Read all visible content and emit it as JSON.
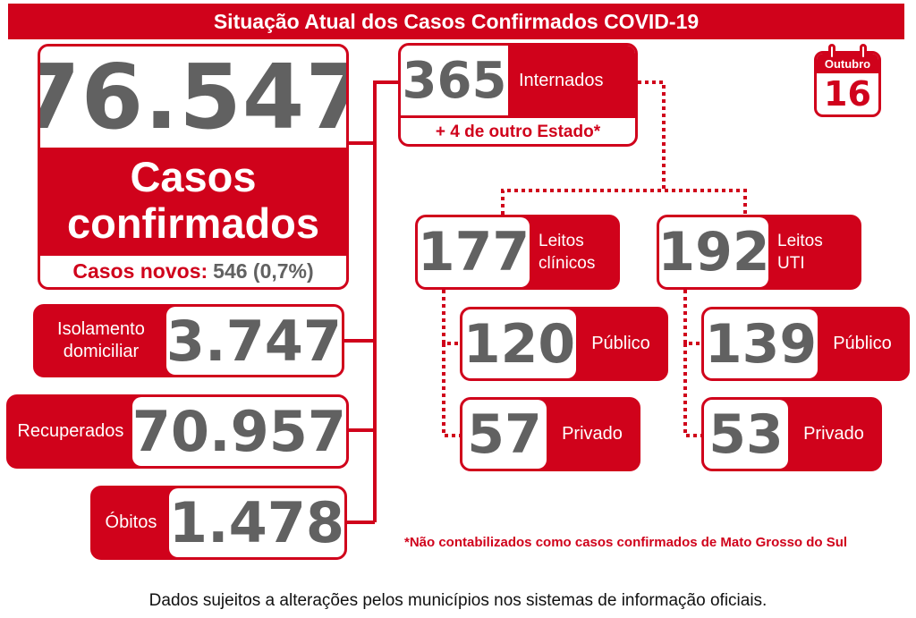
{
  "header": {
    "title": "Situação Atual dos Casos Confirmados COVID-19"
  },
  "calendar": {
    "month": "Outubro",
    "day": "16"
  },
  "confirmed": {
    "value": "76.547",
    "label_line1": "Casos",
    "label_line2": "confirmados",
    "new_label": "Casos novos:",
    "new_value": "546 (0,7%)"
  },
  "home_isolation": {
    "label_line1": "Isolamento",
    "label_line2": "domiciliar",
    "value": "3.747"
  },
  "recovered": {
    "label": "Recuperados",
    "value": "70.957"
  },
  "deaths": {
    "label": "Óbitos",
    "value": "1.478"
  },
  "hospitalized": {
    "value": "365",
    "label": "Internados",
    "other_state": "+ 4 de outro Estado*"
  },
  "clinical_beds": {
    "value": "177",
    "label_line1": "Leitos",
    "label_line2": "clínicos",
    "public": {
      "value": "120",
      "label": "Público"
    },
    "private": {
      "value": "57",
      "label": "Privado"
    }
  },
  "icu_beds": {
    "value": "192",
    "label_line1": "Leitos",
    "label_line2": "UTI",
    "public": {
      "value": "139",
      "label": "Público"
    },
    "private": {
      "value": "53",
      "label": "Privado"
    }
  },
  "footnote": "*Não contabilizados como casos confirmados de Mato Grosso do Sul",
  "footer": "Dados sujeitos a alterações pelos municípios nos sistemas de informação oficiais.",
  "colors": {
    "accent": "#d0021b",
    "number_gray": "#616161"
  }
}
